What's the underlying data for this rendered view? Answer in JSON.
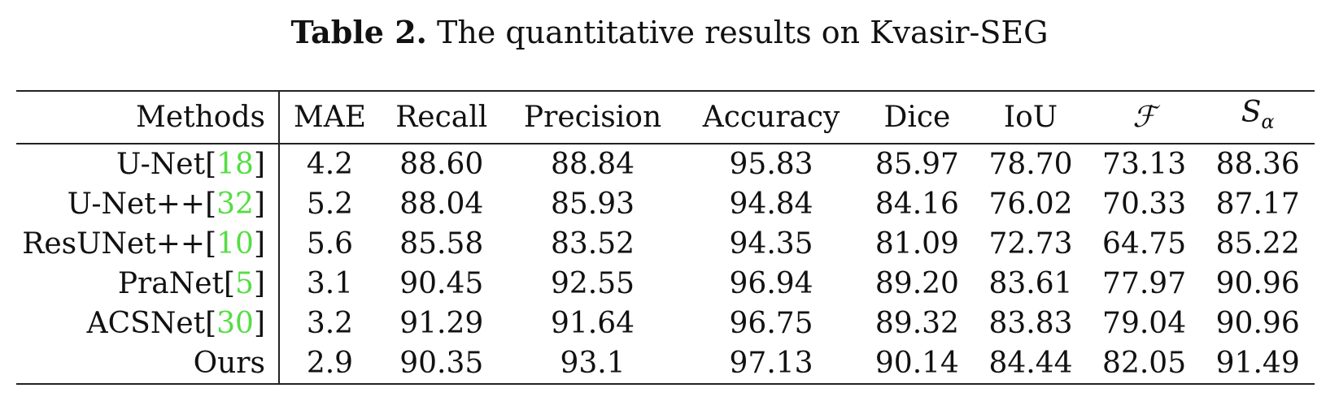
{
  "caption": {
    "label": "Table 2.",
    "text": "The quantitative results on Kvasir-SEG"
  },
  "table": {
    "headers": [
      "Methods",
      "MAE",
      "Recall",
      "Precision",
      "Accuracy",
      "Dice",
      "IoU",
      "ℱ",
      "S",
      "α"
    ],
    "rows": [
      {
        "method": "U-Net",
        "cite": "18",
        "values": [
          "4.2",
          "88.60",
          "88.84",
          "95.83",
          "85.97",
          "78.70",
          "73.13",
          "88.36"
        ]
      },
      {
        "method": "U-Net++",
        "cite": "32",
        "values": [
          "5.2",
          "88.04",
          "85.93",
          "94.84",
          "84.16",
          "76.02",
          "70.33",
          "87.17"
        ]
      },
      {
        "method": "ResUNet++",
        "cite": "10",
        "values": [
          "5.6",
          "85.58",
          "83.52",
          "94.35",
          "81.09",
          "72.73",
          "64.75",
          "85.22"
        ]
      },
      {
        "method": "PraNet",
        "cite": "5",
        "values": [
          "3.1",
          "90.45",
          "92.55",
          "96.94",
          "89.20",
          "83.61",
          "77.97",
          "90.96"
        ]
      },
      {
        "method": "ACSNet",
        "cite": "30",
        "values": [
          "3.2",
          "91.29",
          "91.64",
          "96.75",
          "89.32",
          "83.83",
          "79.04",
          "90.96"
        ]
      },
      {
        "method": "Ours",
        "cite": "",
        "values": [
          "2.9",
          "90.35",
          "93.1",
          "97.13",
          "90.14",
          "84.44",
          "82.05",
          "91.49"
        ]
      }
    ]
  },
  "colors": {
    "citation": "#55dd44",
    "text": "#111111",
    "rule": "#222222"
  }
}
